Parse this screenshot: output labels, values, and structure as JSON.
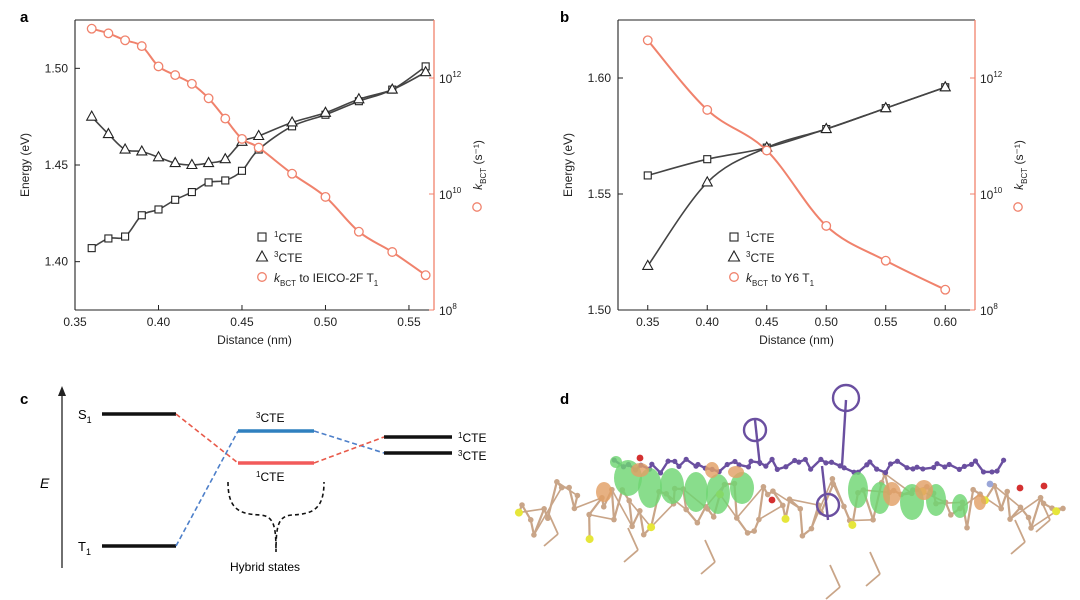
{
  "panels": {
    "a": "a",
    "b": "b",
    "c": "c",
    "d": "d"
  },
  "colors": {
    "singlet": "#333333",
    "triplet": "#333333",
    "rate": "#f0826c",
    "te_triplet_line": "#2f80bf",
    "te_singlet_line": "#f25a5a",
    "dash_red": "#e85a4a",
    "dash_blue": "#4d7fc9",
    "molecule_purple": "#6a4fa0",
    "molecule_tan": "#c9a588",
    "orbital_green": "#6fd673",
    "orbital_orange": "#e2a066",
    "sulfur": "#e6e63a"
  },
  "chart_data": [
    {
      "panel": "a",
      "type": "scatter",
      "xlabel": "Distance (nm)",
      "ylabel": "Energy (eV)",
      "y2label_prefix": "k",
      "y2label_sub": "BCT",
      "y2label_suffix": " (s⁻¹)",
      "xlim": [
        0.35,
        0.565
      ],
      "ylim": [
        1.375,
        1.525
      ],
      "y2lim_log10": [
        8,
        13
      ],
      "xticks": [
        "0.35",
        "0.40",
        "0.45",
        "0.50",
        "0.55"
      ],
      "yticks": [
        "1.40",
        "1.45",
        "1.50"
      ],
      "y2ticks": [
        {
          "base": "10",
          "exp": "8"
        },
        {
          "base": "10",
          "exp": "10"
        },
        {
          "base": "10",
          "exp": "12"
        }
      ],
      "legend": [
        {
          "symbol": "square",
          "pre": "",
          "sup": "1",
          "text": "CTE"
        },
        {
          "symbol": "triangle",
          "pre": "",
          "sup": "3",
          "text": "CTE"
        },
        {
          "symbol": "circle",
          "pre": "k",
          "sub": "BCT",
          "text": " to IEICO-2F T",
          "sub2": "1"
        }
      ],
      "series": [
        {
          "name": "1CTE",
          "x": [
            0.36,
            0.37,
            0.38,
            0.39,
            0.4,
            0.41,
            0.42,
            0.43,
            0.44,
            0.45,
            0.46,
            0.48,
            0.5,
            0.52,
            0.54,
            0.56
          ],
          "y": [
            1.407,
            1.412,
            1.413,
            1.424,
            1.427,
            1.432,
            1.436,
            1.441,
            1.442,
            1.447,
            1.458,
            1.47,
            1.476,
            1.483,
            1.489,
            1.501
          ]
        },
        {
          "name": "3CTE",
          "x": [
            0.36,
            0.37,
            0.38,
            0.39,
            0.4,
            0.41,
            0.42,
            0.43,
            0.44,
            0.45,
            0.46,
            0.48,
            0.5,
            0.52,
            0.54,
            0.56
          ],
          "y": [
            1.475,
            1.466,
            1.458,
            1.457,
            1.454,
            1.451,
            1.45,
            1.451,
            1.453,
            1.462,
            1.465,
            1.472,
            1.477,
            1.484,
            1.489,
            1.498
          ]
        },
        {
          "name": "kBCT",
          "axis": "right",
          "x": [
            0.36,
            0.37,
            0.38,
            0.39,
            0.4,
            0.41,
            0.42,
            0.43,
            0.44,
            0.45,
            0.46,
            0.48,
            0.5,
            0.52,
            0.54,
            0.56
          ],
          "log10y": [
            12.85,
            12.77,
            12.65,
            12.55,
            12.2,
            12.05,
            11.9,
            11.65,
            11.3,
            10.95,
            10.8,
            10.35,
            9.95,
            9.35,
            9.0,
            8.6
          ]
        }
      ]
    },
    {
      "panel": "b",
      "type": "scatter",
      "xlabel": "Distance (nm)",
      "ylabel": "Energy (eV)",
      "y2label_prefix": "k",
      "y2label_sub": "BCT",
      "y2label_suffix": " (s⁻¹)",
      "xlim": [
        0.325,
        0.625
      ],
      "ylim": [
        1.5,
        1.625
      ],
      "y2lim_log10": [
        8,
        13
      ],
      "xticks": [
        "0.35",
        "0.40",
        "0.45",
        "0.50",
        "0.55",
        "0.60"
      ],
      "yticks": [
        "1.50",
        "1.55",
        "1.60"
      ],
      "y2ticks": [
        {
          "base": "10",
          "exp": "8"
        },
        {
          "base": "10",
          "exp": "10"
        },
        {
          "base": "10",
          "exp": "12"
        }
      ],
      "legend": [
        {
          "symbol": "square",
          "pre": "",
          "sup": "1",
          "text": "CTE"
        },
        {
          "symbol": "triangle",
          "pre": "",
          "sup": "3",
          "text": "CTE"
        },
        {
          "symbol": "circle",
          "pre": "k",
          "sub": "BCT",
          "text": " to Y6 T",
          "sub2": "1"
        }
      ],
      "series": [
        {
          "name": "1CTE",
          "x": [
            0.35,
            0.4,
            0.45,
            0.5,
            0.55,
            0.6
          ],
          "y": [
            1.558,
            1.565,
            1.57,
            1.578,
            1.587,
            1.596
          ]
        },
        {
          "name": "3CTE",
          "x": [
            0.35,
            0.4,
            0.45,
            0.5,
            0.55,
            0.6
          ],
          "y": [
            1.519,
            1.555,
            1.57,
            1.578,
            1.587,
            1.596
          ]
        },
        {
          "name": "kBCT",
          "axis": "right",
          "x": [
            0.35,
            0.4,
            0.45,
            0.5,
            0.55,
            0.6
          ],
          "log10y": [
            12.65,
            11.45,
            10.75,
            9.45,
            8.85,
            8.35
          ]
        }
      ]
    }
  ],
  "diagram_c": {
    "axis_label": "E",
    "s1_label": "S",
    "s1_sub": "1",
    "t1_label": "T",
    "t1_sub": "1",
    "mid_top_sup": "3",
    "mid_top_text": "CTE",
    "mid_bottom_sup": "1",
    "mid_bottom_text": "CTE",
    "right_top_sup": "1",
    "right_top_text": "CTE",
    "right_bottom_sup": "3",
    "right_bottom_text": "CTE",
    "hybrid_label": "Hybrid states"
  }
}
